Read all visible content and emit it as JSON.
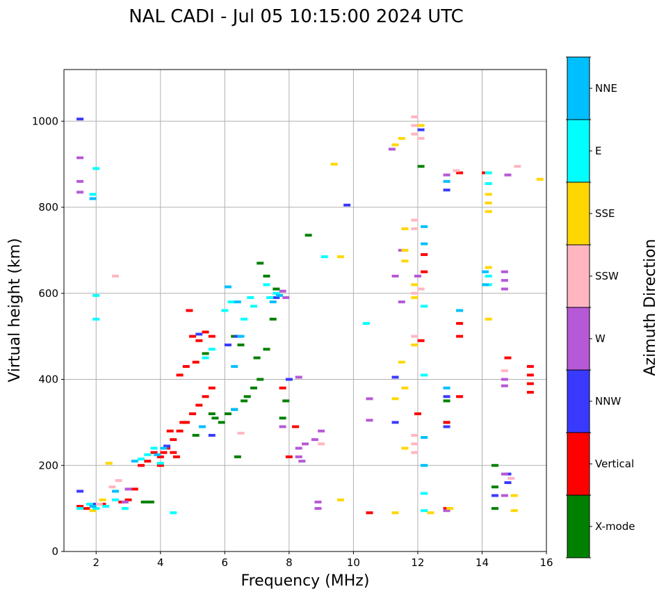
{
  "chart_data": {
    "type": "scatter",
    "title": "NAL CADI - Jul 05 10:15:00 2024 UTC",
    "xlabel": "Frequency (MHz)",
    "ylabel": "Virtual height (km)",
    "xlim": [
      1,
      16
    ],
    "ylim": [
      0,
      1120
    ],
    "xticks": [
      2,
      4,
      6,
      8,
      10,
      12,
      14,
      16
    ],
    "yticks": [
      0,
      200,
      400,
      600,
      800,
      1000
    ],
    "grid": true,
    "colorbar": {
      "label": "Azimuth Direction",
      "categories": [
        "X-mode",
        "Vertical",
        "NNW",
        "W",
        "SSW",
        "SSE",
        "E",
        "NNE"
      ],
      "colors": [
        "#008000",
        "#ff0000",
        "#3a3aff",
        "#b659d6",
        "#ffb6c1",
        "#ffd700",
        "#00ffff",
        "#00bfff"
      ]
    },
    "series": [
      {
        "name": "X-mode",
        "color": "#008000",
        "points": [
          [
            3.5,
            115
          ],
          [
            3.7,
            115
          ],
          [
            5.7,
            310
          ],
          [
            5.9,
            300
          ],
          [
            6.1,
            320
          ],
          [
            6.3,
            330
          ],
          [
            6.6,
            350
          ],
          [
            6.9,
            380
          ],
          [
            7.1,
            400
          ],
          [
            7.3,
            470
          ],
          [
            7.5,
            540
          ],
          [
            7.1,
            670
          ],
          [
            8.6,
            735
          ],
          [
            7.9,
            350
          ],
          [
            7.8,
            310
          ],
          [
            6.5,
            480
          ],
          [
            6.3,
            500
          ],
          [
            5.4,
            460
          ],
          [
            5.1,
            270
          ],
          [
            6.7,
            360
          ],
          [
            7.0,
            450
          ],
          [
            7.6,
            610
          ],
          [
            7.3,
            640
          ],
          [
            12.1,
            895
          ],
          [
            12.9,
            300
          ],
          [
            12.9,
            350
          ],
          [
            14.4,
            100
          ],
          [
            14.4,
            150
          ],
          [
            14.4,
            200
          ],
          [
            4.8,
            300
          ],
          [
            5.6,
            320
          ],
          [
            6.4,
            220
          ]
        ]
      },
      {
        "name": "Vertical",
        "color": "#ff0000",
        "points": [
          [
            1.5,
            105
          ],
          [
            1.7,
            100
          ],
          [
            3.0,
            120
          ],
          [
            3.2,
            145
          ],
          [
            3.4,
            200
          ],
          [
            3.6,
            210
          ],
          [
            3.8,
            230
          ],
          [
            4.0,
            220
          ],
          [
            4.2,
            240
          ],
          [
            4.4,
            260
          ],
          [
            4.6,
            280
          ],
          [
            4.8,
            300
          ],
          [
            5.0,
            320
          ],
          [
            5.2,
            340
          ],
          [
            5.4,
            360
          ],
          [
            5.6,
            380
          ],
          [
            5.0,
            500
          ],
          [
            5.2,
            490
          ],
          [
            5.4,
            510
          ],
          [
            5.6,
            500
          ],
          [
            4.8,
            430
          ],
          [
            4.6,
            410
          ],
          [
            5.1,
            440
          ],
          [
            4.9,
            560
          ],
          [
            4.3,
            280
          ],
          [
            4.1,
            230
          ],
          [
            4.7,
            300
          ],
          [
            4.5,
            220
          ],
          [
            4.0,
            200
          ],
          [
            7.8,
            380
          ],
          [
            8.2,
            290
          ],
          [
            8.0,
            220
          ],
          [
            12.1,
            490
          ],
          [
            12.2,
            650
          ],
          [
            12.2,
            690
          ],
          [
            13.3,
            500
          ],
          [
            13.3,
            530
          ],
          [
            13.3,
            560
          ],
          [
            13.3,
            360
          ],
          [
            13.3,
            880
          ],
          [
            14.1,
            880
          ],
          [
            14.8,
            450
          ],
          [
            15.5,
            370
          ],
          [
            15.5,
            390
          ],
          [
            15.5,
            410
          ],
          [
            15.5,
            430
          ],
          [
            10.5,
            90
          ],
          [
            12.9,
            100
          ],
          [
            12.0,
            320
          ],
          [
            12.9,
            300
          ],
          [
            2.8,
            115
          ],
          [
            2.2,
            110
          ],
          [
            4.4,
            230
          ]
        ]
      },
      {
        "name": "NNW",
        "color": "#3a3aff",
        "points": [
          [
            1.5,
            1005
          ],
          [
            1.5,
            140
          ],
          [
            1.9,
            110
          ],
          [
            4.2,
            245
          ],
          [
            5.6,
            270
          ],
          [
            6.1,
            480
          ],
          [
            6.4,
            500
          ],
          [
            9.8,
            805
          ],
          [
            12.9,
            840
          ],
          [
            12.9,
            360
          ],
          [
            12.9,
            290
          ],
          [
            11.3,
            405
          ],
          [
            11.3,
            300
          ],
          [
            12.1,
            980
          ],
          [
            14.8,
            180
          ],
          [
            14.8,
            160
          ],
          [
            14.4,
            130
          ],
          [
            8.0,
            400
          ],
          [
            7.6,
            590
          ],
          [
            5.2,
            505
          ]
        ]
      },
      {
        "name": "W",
        "color": "#b659d6",
        "points": [
          [
            1.5,
            915
          ],
          [
            1.5,
            860
          ],
          [
            1.5,
            835
          ],
          [
            7.8,
            605
          ],
          [
            7.9,
            590
          ],
          [
            8.3,
            405
          ],
          [
            8.3,
            220
          ],
          [
            8.4,
            210
          ],
          [
            8.3,
            240
          ],
          [
            8.5,
            250
          ],
          [
            8.9,
            100
          ],
          [
            8.9,
            115
          ],
          [
            8.8,
            260
          ],
          [
            9.0,
            280
          ],
          [
            7.8,
            290
          ],
          [
            10.5,
            305
          ],
          [
            10.5,
            355
          ],
          [
            11.2,
            935
          ],
          [
            11.3,
            640
          ],
          [
            11.5,
            700
          ],
          [
            11.5,
            580
          ],
          [
            12.0,
            640
          ],
          [
            12.9,
            875
          ],
          [
            14.7,
            650
          ],
          [
            14.7,
            630
          ],
          [
            14.7,
            610
          ],
          [
            14.7,
            400
          ],
          [
            14.7,
            385
          ],
          [
            14.7,
            180
          ],
          [
            14.7,
            130
          ],
          [
            14.8,
            875
          ],
          [
            12.9,
            95
          ],
          [
            3.0,
            145
          ],
          [
            2.9,
            115
          ]
        ]
      },
      {
        "name": "SSW",
        "color": "#ffb6c1",
        "points": [
          [
            11.9,
            1010
          ],
          [
            11.9,
            990
          ],
          [
            11.9,
            970
          ],
          [
            11.9,
            230
          ],
          [
            11.9,
            250
          ],
          [
            11.9,
            270
          ],
          [
            11.9,
            750
          ],
          [
            11.9,
            770
          ],
          [
            11.9,
            600
          ],
          [
            11.9,
            500
          ],
          [
            12.1,
            960
          ],
          [
            12.1,
            610
          ],
          [
            13.2,
            885
          ],
          [
            15.1,
            895
          ],
          [
            14.9,
            170
          ],
          [
            14.7,
            420
          ],
          [
            9.0,
            250
          ],
          [
            6.5,
            275
          ],
          [
            2.6,
            640
          ],
          [
            2.1,
            110
          ],
          [
            2.5,
            150
          ],
          [
            2.7,
            165
          ]
        ]
      },
      {
        "name": "SSE",
        "color": "#ffd700",
        "points": [
          [
            11.5,
            960
          ],
          [
            11.3,
            945
          ],
          [
            11.6,
            750
          ],
          [
            11.6,
            700
          ],
          [
            11.6,
            675
          ],
          [
            11.5,
            440
          ],
          [
            11.3,
            355
          ],
          [
            11.9,
            620
          ],
          [
            11.9,
            590
          ],
          [
            11.9,
            480
          ],
          [
            11.6,
            380
          ],
          [
            11.6,
            240
          ],
          [
            12.1,
            990
          ],
          [
            12.4,
            90
          ],
          [
            14.2,
            830
          ],
          [
            14.2,
            810
          ],
          [
            14.2,
            790
          ],
          [
            14.2,
            660
          ],
          [
            14.2,
            540
          ],
          [
            15.0,
            130
          ],
          [
            15.0,
            95
          ],
          [
            15.8,
            865
          ],
          [
            9.4,
            900
          ],
          [
            9.6,
            685
          ],
          [
            9.6,
            120
          ],
          [
            11.3,
            90
          ],
          [
            2.4,
            205
          ],
          [
            2.2,
            120
          ],
          [
            1.9,
            95
          ],
          [
            13.0,
            100
          ]
        ]
      },
      {
        "name": "E",
        "color": "#00ffff",
        "points": [
          [
            1.5,
            100
          ],
          [
            1.8,
            110
          ],
          [
            2.0,
            100
          ],
          [
            2.3,
            105
          ],
          [
            2.6,
            120
          ],
          [
            2.9,
            100
          ],
          [
            3.4,
            215
          ],
          [
            3.6,
            225
          ],
          [
            3.8,
            240
          ],
          [
            4.0,
            205
          ],
          [
            4.4,
            90
          ],
          [
            5.4,
            450
          ],
          [
            5.6,
            470
          ],
          [
            6.0,
            560
          ],
          [
            6.2,
            580
          ],
          [
            6.6,
            540
          ],
          [
            6.9,
            570
          ],
          [
            7.3,
            620
          ],
          [
            7.6,
            600
          ],
          [
            7.4,
            590
          ],
          [
            9.1,
            685
          ],
          [
            10.4,
            530
          ],
          [
            12.2,
            200
          ],
          [
            12.2,
            135
          ],
          [
            12.2,
            95
          ],
          [
            12.2,
            570
          ],
          [
            12.2,
            410
          ],
          [
            13.3,
            560
          ],
          [
            14.2,
            640
          ],
          [
            14.2,
            620
          ],
          [
            14.2,
            855
          ],
          [
            14.2,
            880
          ],
          [
            1.9,
            830
          ],
          [
            2.0,
            890
          ],
          [
            2.0,
            595
          ],
          [
            2.0,
            540
          ],
          [
            6.8,
            590
          ]
        ]
      },
      {
        "name": "NNE",
        "color": "#00bfff",
        "points": [
          [
            5.3,
            290
          ],
          [
            6.3,
            330
          ],
          [
            6.4,
            580
          ],
          [
            6.5,
            500
          ],
          [
            6.1,
            615
          ],
          [
            7.5,
            580
          ],
          [
            7.7,
            595
          ],
          [
            6.3,
            430
          ],
          [
            4.1,
            240
          ],
          [
            3.9,
            225
          ],
          [
            12.2,
            755
          ],
          [
            12.2,
            715
          ],
          [
            12.2,
            265
          ],
          [
            12.2,
            200
          ],
          [
            12.9,
            860
          ],
          [
            12.9,
            380
          ],
          [
            13.3,
            560
          ],
          [
            14.1,
            650
          ],
          [
            14.1,
            620
          ],
          [
            1.9,
            820
          ],
          [
            1.9,
            105
          ],
          [
            2.6,
            140
          ],
          [
            3.2,
            210
          ]
        ]
      }
    ]
  }
}
